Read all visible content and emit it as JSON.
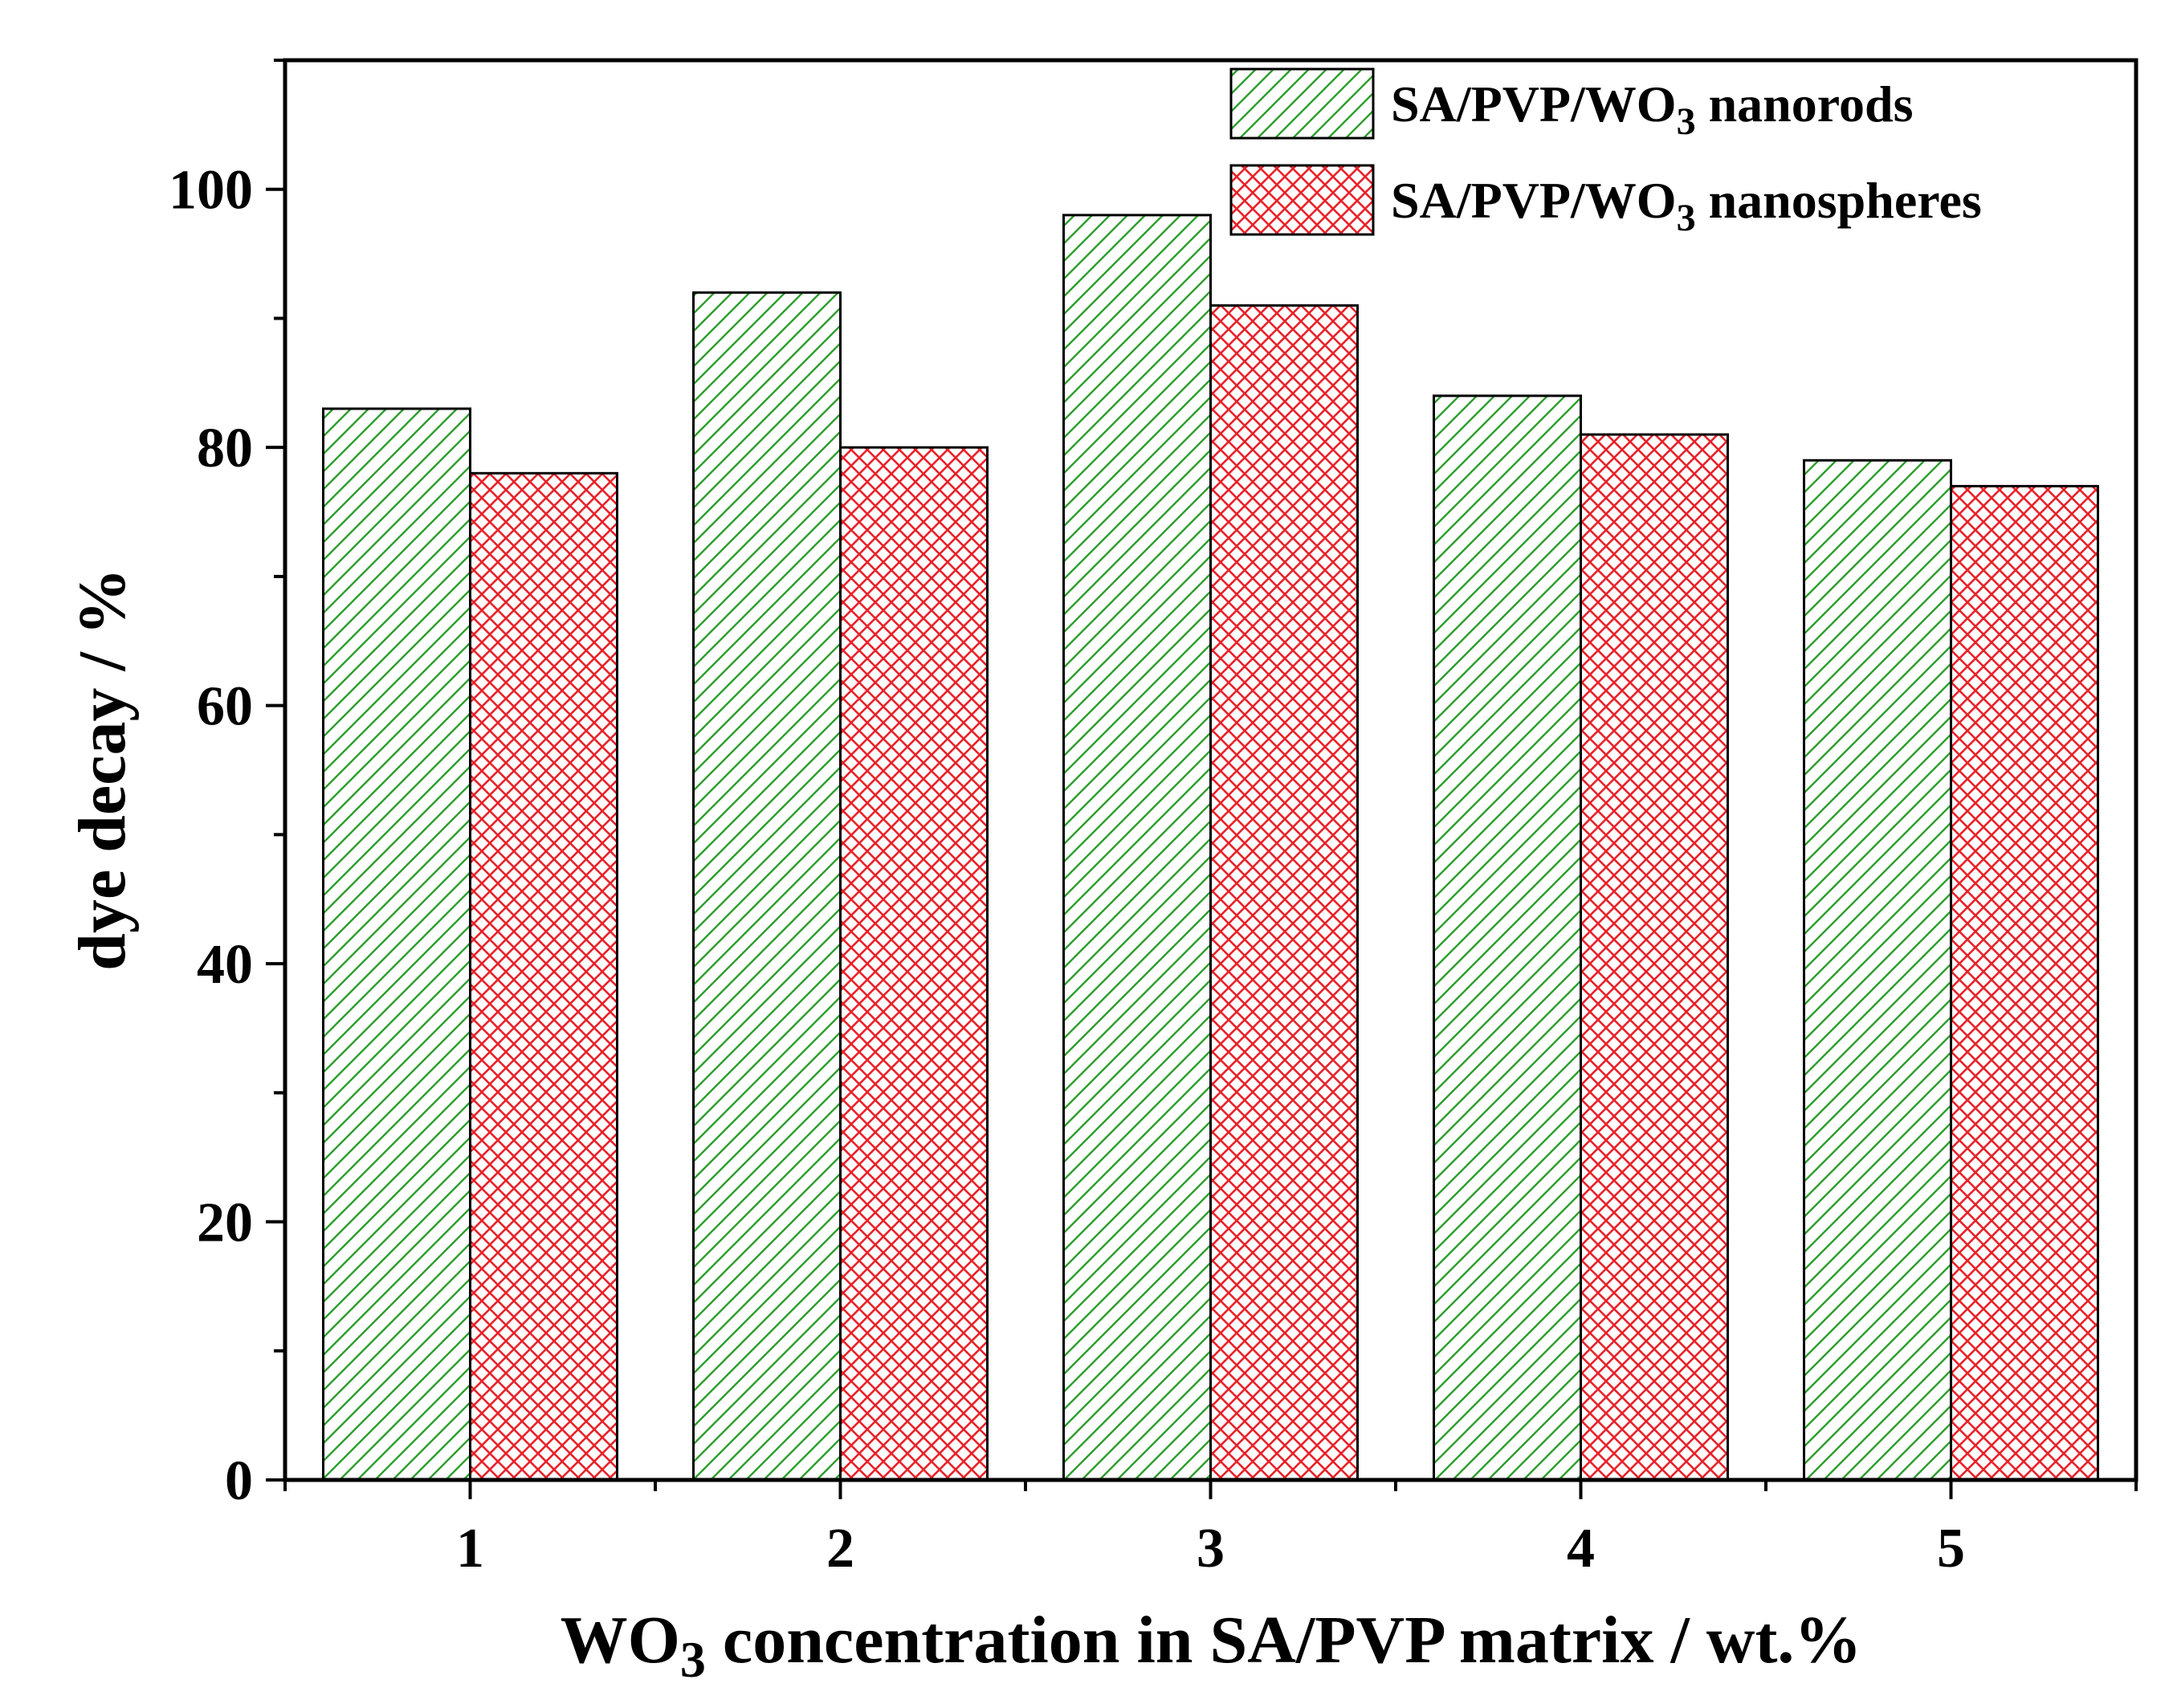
{
  "chart_data": {
    "type": "bar",
    "title": "",
    "xlabel": {
      "prefix": "WO",
      "sub": "3",
      "suffix": " concentration in SA/PVP matrix / wt.%"
    },
    "ylabel": "dye decay / %",
    "categories": [
      "1",
      "2",
      "3",
      "4",
      "5"
    ],
    "ylim": [
      0,
      110
    ],
    "yticks": [
      0,
      20,
      40,
      60,
      80,
      100
    ],
    "y_minor_step": 10,
    "grid": false,
    "legend_position": "top-right",
    "series": [
      {
        "name": "SA/PVP/WO3 nanorods",
        "legend": {
          "prefix": "SA/PVP/WO",
          "sub": "3",
          "suffix": " nanorods"
        },
        "values": [
          83,
          92,
          98,
          84,
          79
        ],
        "color": "#2e9e2e",
        "pattern": "diagonal-hatch"
      },
      {
        "name": "SA/PVP/WO3 nanospheres",
        "legend": {
          "prefix": "SA/PVP/WO",
          "sub": "3",
          "suffix": " nanospheres"
        },
        "values": [
          78,
          80,
          91,
          81,
          77
        ],
        "color": "#e8232a",
        "pattern": "cross-hatch"
      }
    ]
  }
}
